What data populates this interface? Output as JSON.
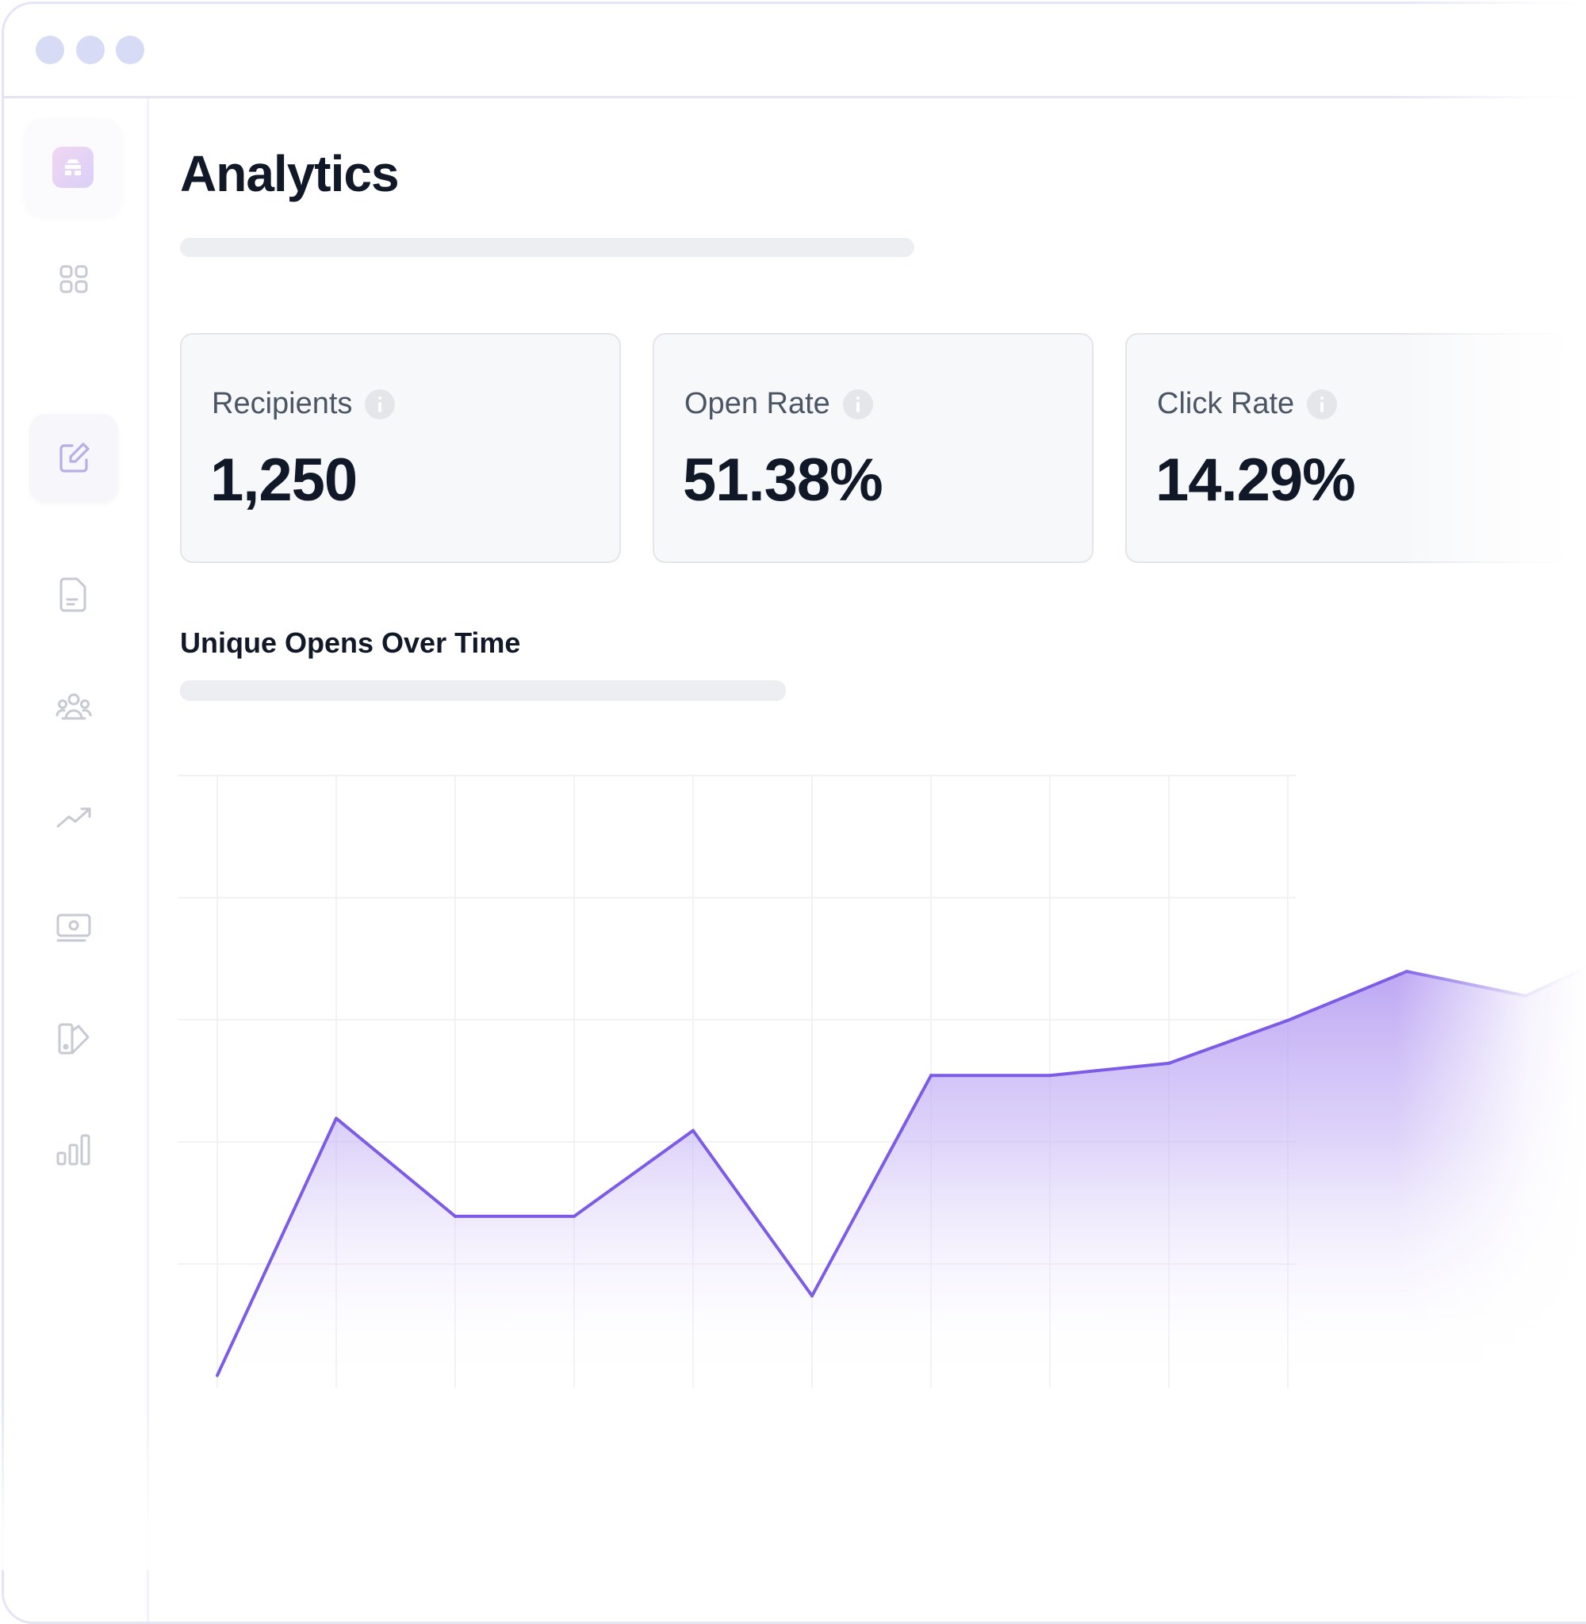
{
  "window": {
    "controls": [
      "window-dot",
      "window-dot",
      "window-dot"
    ]
  },
  "sidebar": {
    "logo_icon": "hive-logo-icon",
    "items": [
      {
        "icon": "dashboard-grid-icon",
        "active": false
      },
      {
        "icon": "compose-icon",
        "active": true
      },
      {
        "icon": "document-icon",
        "active": false
      },
      {
        "icon": "audience-icon",
        "active": false
      },
      {
        "icon": "trending-icon",
        "active": false
      },
      {
        "icon": "billing-icon",
        "active": false
      },
      {
        "icon": "design-icon",
        "active": false
      },
      {
        "icon": "bar-chart-icon",
        "active": false
      }
    ]
  },
  "header": {
    "title": "Analytics"
  },
  "stats": [
    {
      "label": "Recipients",
      "value": "1,250",
      "info_icon": "info-icon"
    },
    {
      "label": "Open Rate",
      "value": "51.38%",
      "info_icon": "info-icon"
    },
    {
      "label": "Click Rate",
      "value": "14.29%",
      "info_icon": "info-icon"
    }
  ],
  "chart": {
    "title": "Unique Opens Over Time"
  },
  "colors": {
    "accent": "#8b5cf6",
    "line": "#7c5ce6",
    "fill_top": "#b9a3f3",
    "window_border": "#e3e5f7",
    "window_dot": "#d8dbf6"
  },
  "chart_data": {
    "type": "area",
    "title": "Unique Opens Over Time",
    "xlabel": "",
    "ylabel": "",
    "x": [
      0,
      1,
      2,
      3,
      4,
      5,
      6,
      7,
      8,
      9,
      10,
      11,
      12
    ],
    "values": [
      2,
      44,
      28,
      28,
      42,
      15,
      51,
      51,
      53,
      60,
      68,
      64,
      73
    ],
    "ylim": [
      0,
      100
    ],
    "grid": true,
    "legend": "none"
  }
}
